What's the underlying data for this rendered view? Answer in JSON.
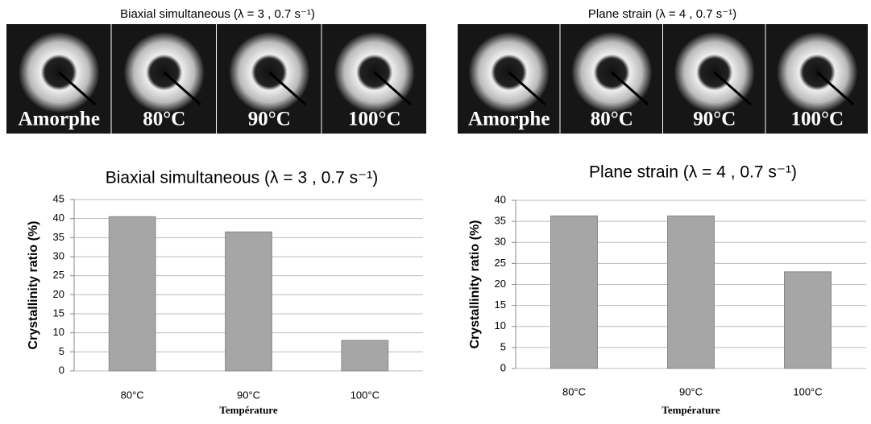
{
  "image_strips": [
    {
      "title": "Biaxial simultaneous (λ = 3 , 0.7 s⁻¹)",
      "labels": [
        "Amorphe",
        "80°C",
        "90°C",
        "100°C"
      ]
    },
    {
      "title": "Plane strain (λ = 4 , 0.7 s⁻¹)",
      "labels": [
        "Amorphe",
        "80°C",
        "90°C",
        "100°C"
      ]
    }
  ],
  "chart_data": [
    {
      "type": "bar",
      "title": "Biaxial simultaneous (λ = 3 , 0.7 s⁻¹)",
      "y_label": "Crystallinity ratio (%)",
      "x_label": "Température",
      "categories": [
        "80°C",
        "90°C",
        "100°C"
      ],
      "values": [
        40.5,
        36.5,
        8
      ],
      "color": "#a6a6a6",
      "ylim": [
        0,
        45
      ],
      "yticks": [
        0,
        5,
        10,
        15,
        20,
        25,
        30,
        35,
        40,
        45
      ],
      "grid": true
    },
    {
      "type": "bar",
      "title": "Plane strain (λ = 4 , 0.7 s⁻¹)",
      "y_label": "Crystallinity ratio (%)",
      "x_label": "Température",
      "categories": [
        "80°C",
        "90°C",
        "100°C"
      ],
      "values": [
        36.3,
        36.3,
        23
      ],
      "color": "#a6a6a6",
      "ylim": [
        0,
        40
      ],
      "yticks": [
        0,
        5,
        10,
        15,
        20,
        25,
        30,
        35,
        40
      ],
      "grid": true
    }
  ]
}
